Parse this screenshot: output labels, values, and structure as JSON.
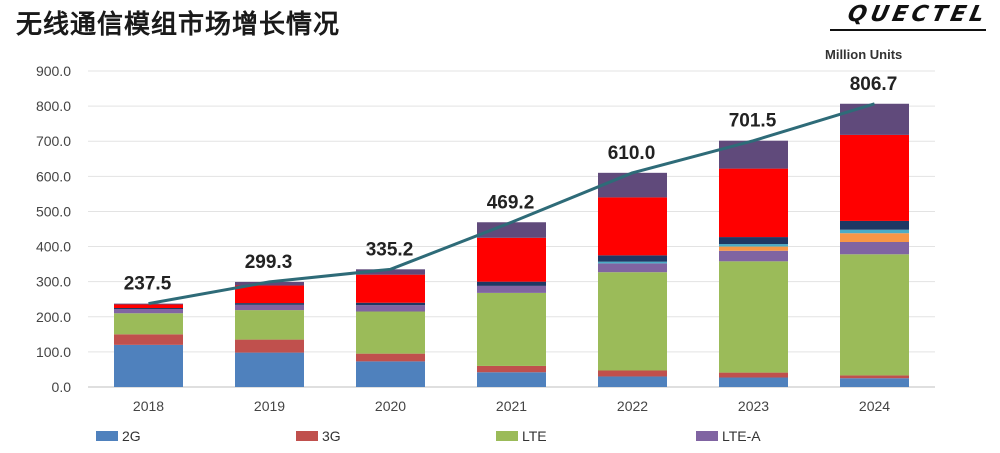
{
  "header": {
    "title": "无线通信模组市场增长情况",
    "logo_text": "QUECTEL",
    "units_label": "Million Units"
  },
  "chart_data": {
    "type": "bar",
    "stacked": true,
    "title": "无线通信模组市场增长情况",
    "ylabel": "Million Units",
    "ylim": [
      0,
      900
    ],
    "yticks": [
      "0.0",
      "100.0",
      "200.0",
      "300.0",
      "400.0",
      "500.0",
      "600.0",
      "700.0",
      "800.0",
      "900.0"
    ],
    "grid": true,
    "legend_position": "bottom",
    "categories": [
      "2018",
      "2019",
      "2020",
      "2021",
      "2022",
      "2023",
      "2024"
    ],
    "totals": [
      237.5,
      299.3,
      335.2,
      469.2,
      610.0,
      701.5,
      806.7
    ],
    "total_labels": [
      "237.5",
      "299.3",
      "335.2",
      "469.2",
      "610.0",
      "701.5",
      "806.7"
    ],
    "series": [
      {
        "name": "2G",
        "color": "#4f81bd",
        "values": [
          120,
          98,
          73,
          42,
          30,
          27,
          25
        ]
      },
      {
        "name": "3G",
        "color": "#c0504d",
        "values": [
          30,
          37,
          22,
          18,
          17,
          14,
          8
        ]
      },
      {
        "name": "LTE",
        "color": "#9bbb59",
        "values": [
          60,
          84,
          120,
          208,
          280,
          317,
          345
        ]
      },
      {
        "name": "LTE-A",
        "color": "#8064a2",
        "values": [
          12,
          15,
          18,
          20,
          25,
          30,
          35
        ]
      },
      {
        "name": "",
        "color": "#f79646",
        "values": [
          0,
          0,
          0,
          0,
          0,
          12,
          25
        ]
      },
      {
        "name": "",
        "color": "#4bacc6",
        "values": [
          0,
          0,
          0,
          0,
          5,
          7,
          10
        ]
      },
      {
        "name": "",
        "color": "#1f3864",
        "values": [
          3,
          5,
          7,
          12,
          18,
          20,
          25
        ]
      },
      {
        "name": "",
        "color": "#ff0000",
        "values": [
          10,
          50,
          80,
          125,
          165,
          195,
          245
        ]
      },
      {
        "name": "",
        "color": "#604a7b",
        "values": [
          2.5,
          10.3,
          15.2,
          44.2,
          70,
          79.5,
          88.7
        ]
      }
    ],
    "trend_line": {
      "color": "#2e6b78",
      "values": [
        237.5,
        299.3,
        335.2,
        469.2,
        610.0,
        701.5,
        806.7
      ]
    }
  }
}
